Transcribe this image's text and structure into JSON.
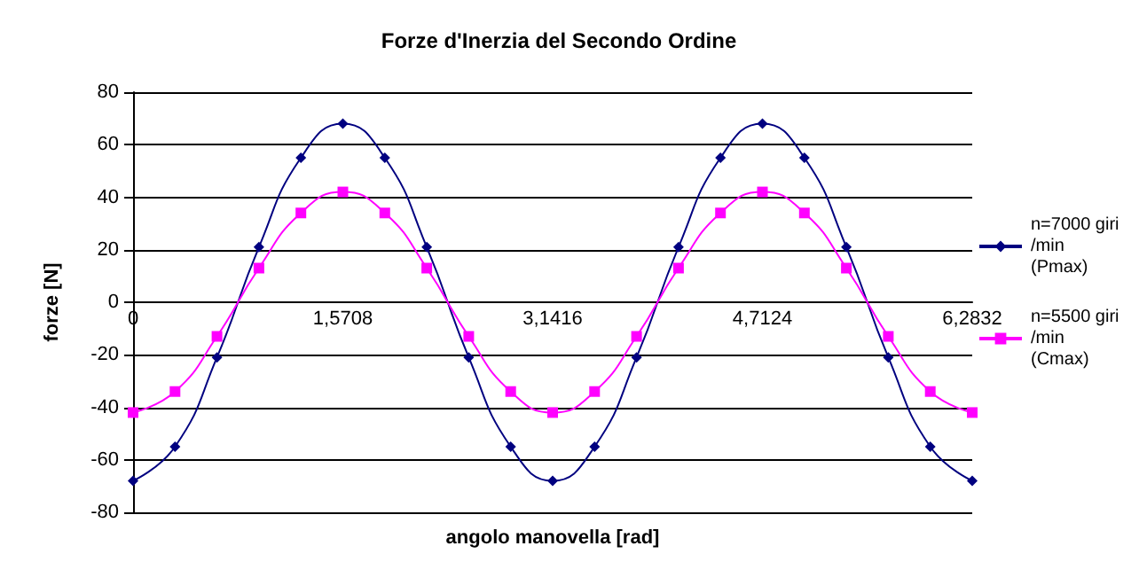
{
  "chart_data": {
    "type": "line",
    "title": "Forze d'Inerzia del Secondo Ordine",
    "xlabel": "angolo manovella [rad]",
    "ylabel": "forze [N]",
    "categories": [
      "0",
      null,
      null,
      null,
      null,
      "1,5708",
      null,
      null,
      null,
      null,
      "3,1416",
      null,
      null,
      null,
      null,
      "4,7124",
      null,
      null,
      null,
      null,
      "6,2832"
    ],
    "series": [
      {
        "name": "n=7000 giri/min (Pmax)",
        "color": "#000080",
        "marker": "diamond",
        "values": [
          -68,
          -55,
          -21,
          21,
          55,
          68,
          55,
          21,
          -21,
          -55,
          -68,
          -55,
          -21,
          21,
          55,
          68,
          55,
          21,
          -21,
          -55,
          -68
        ]
      },
      {
        "name": "n=5500 giri/min (Cmax)",
        "color": "#ff00ff",
        "marker": "square",
        "values": [
          -42,
          -34,
          -13,
          13,
          34,
          42,
          34,
          13,
          -13,
          -34,
          -42,
          -34,
          -13,
          13,
          34,
          42,
          34,
          13,
          -13,
          -34,
          -42
        ]
      }
    ],
    "ylim": [
      -80,
      80
    ],
    "yticks": [
      -80,
      -60,
      -40,
      -20,
      0,
      20,
      40,
      60,
      80
    ],
    "grid": "y",
    "legend": "right"
  }
}
